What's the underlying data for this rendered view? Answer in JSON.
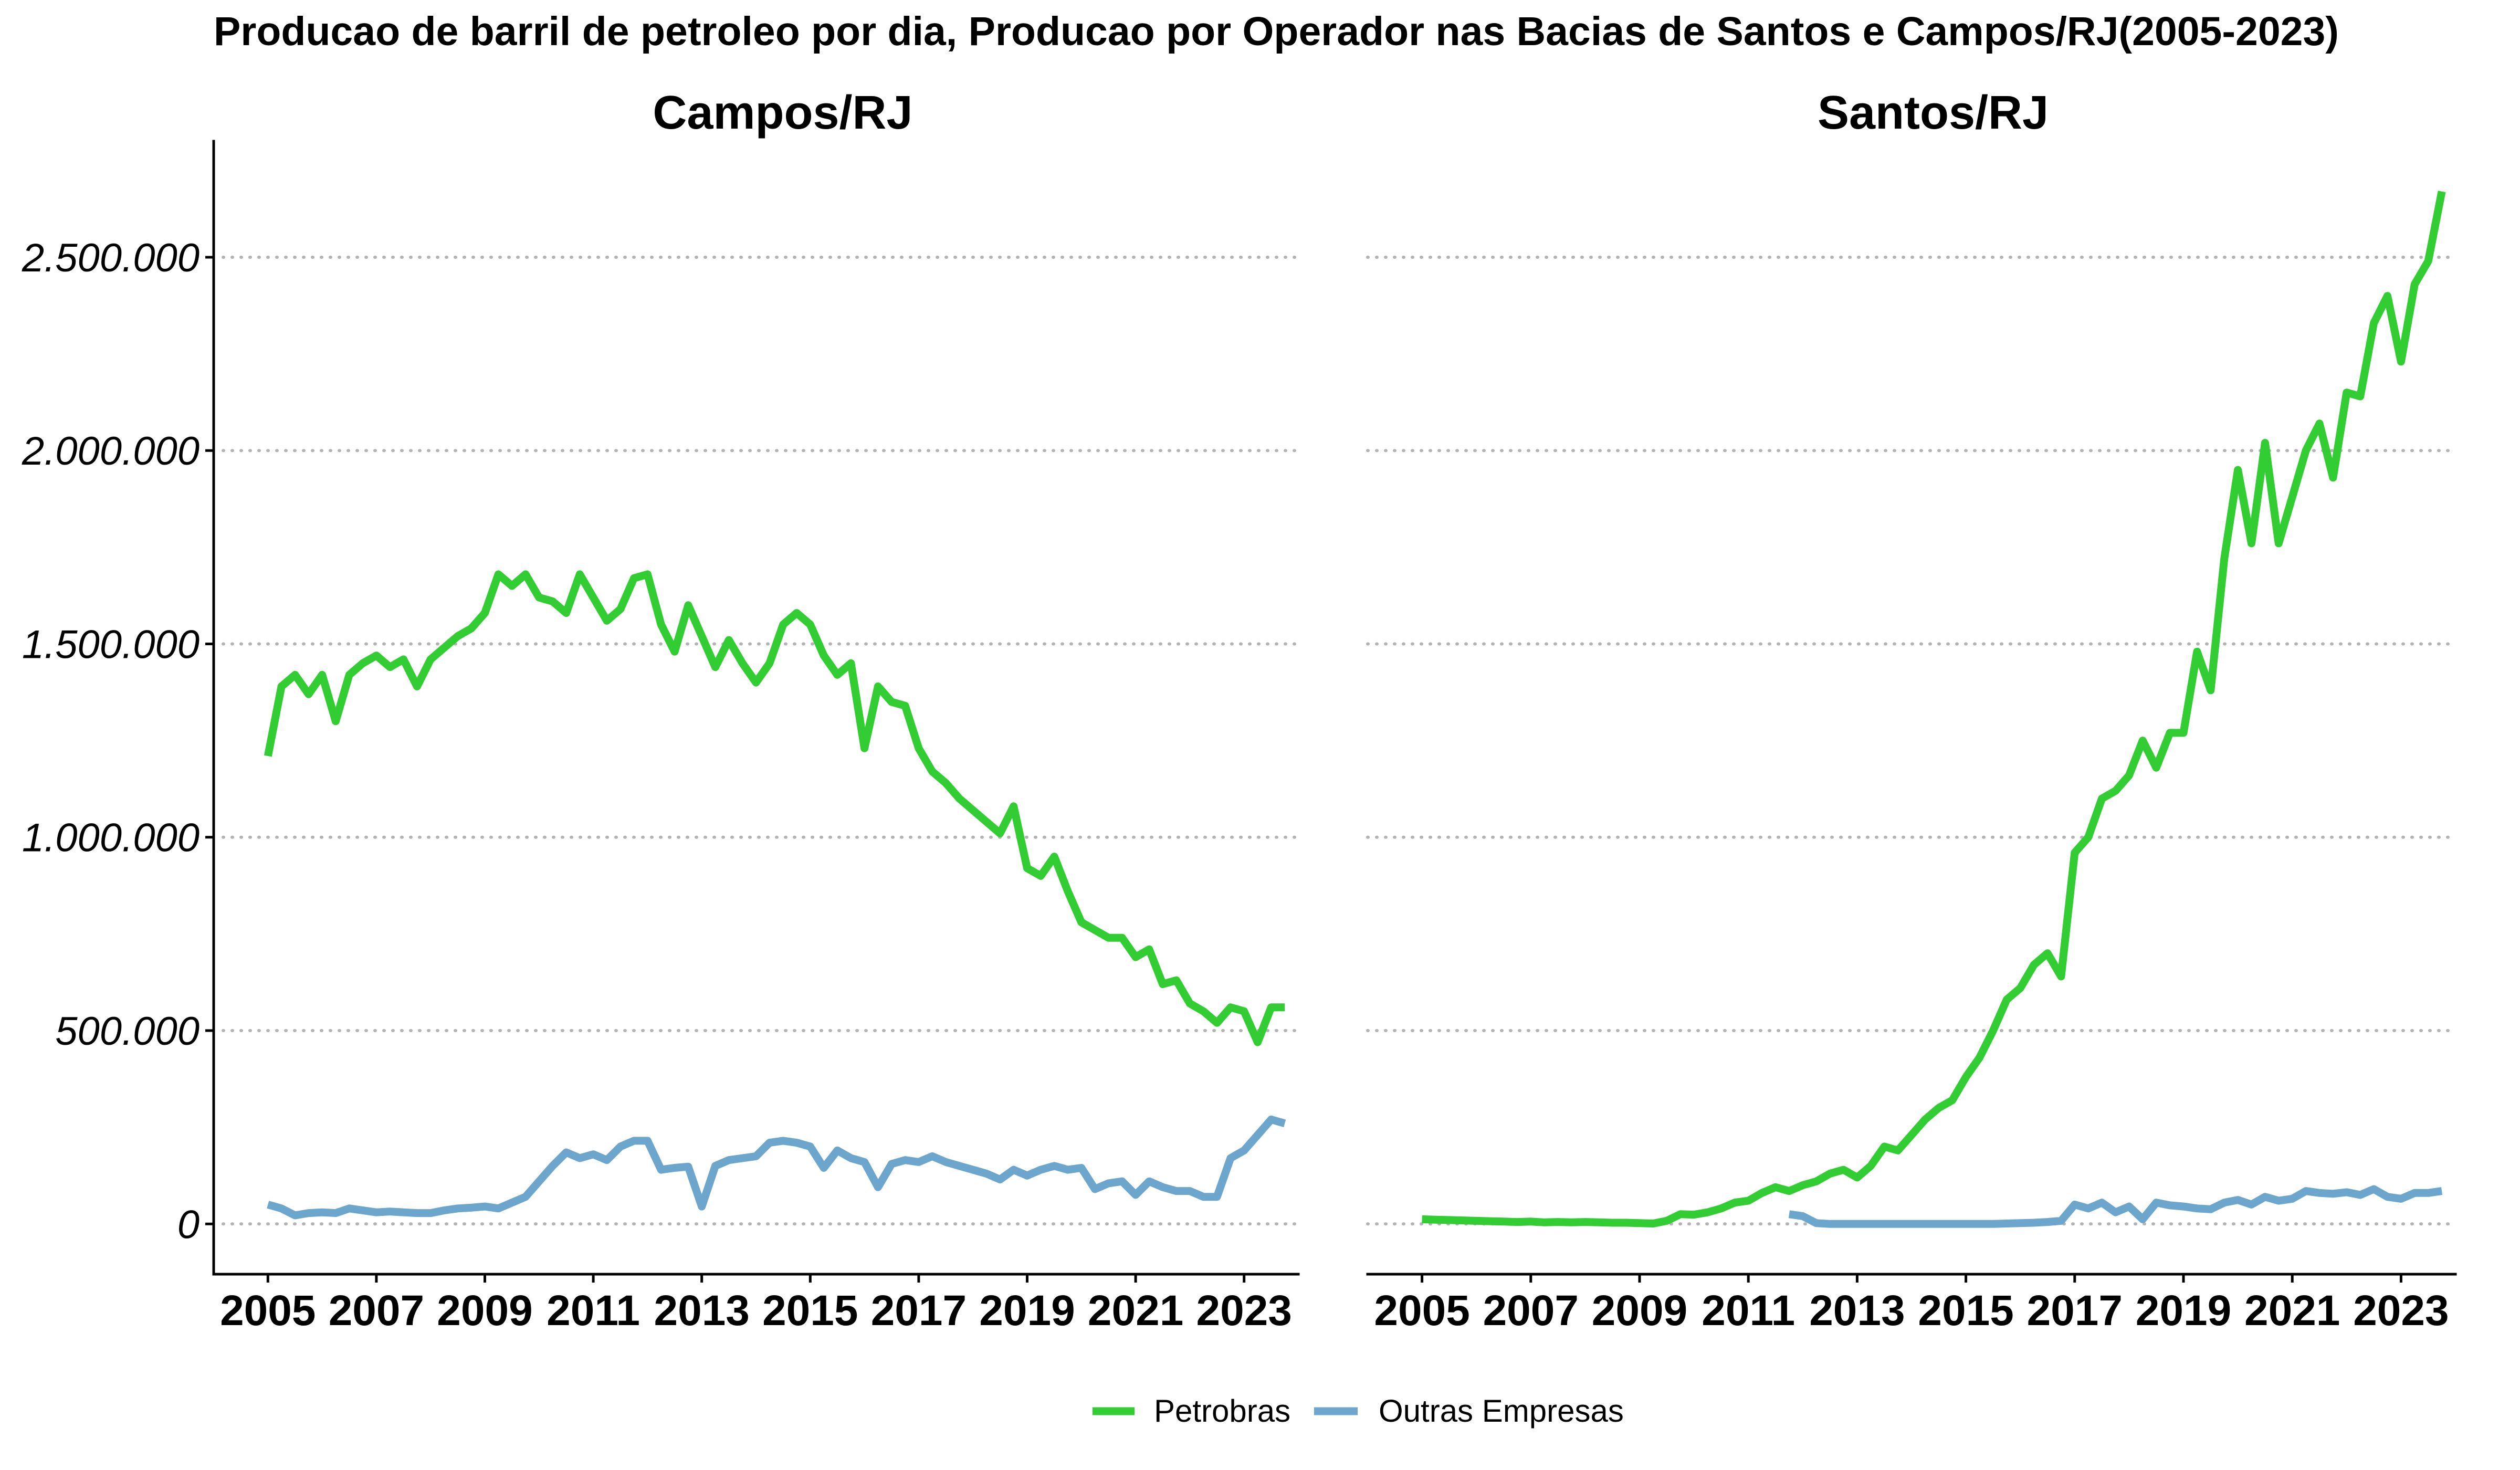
{
  "title": "Producao de barril de petroleo por dia, Producao por Operador nas Bacias de Santos e Campos/RJ(2005-2023)",
  "legend": {
    "position": "bottom",
    "items": [
      {
        "label": "Petrobras",
        "color": "#32CD32"
      },
      {
        "label": "Outras Empresas",
        "color": "#6CA6CD"
      }
    ]
  },
  "chart_data": [
    {
      "type": "line",
      "title": "Campos/RJ",
      "grid": "horizontal dotted",
      "xlim": [
        "2004-01",
        "2024-01"
      ],
      "ylim": [
        -130000,
        2800000
      ],
      "x_ticks": [
        "2005",
        "2007",
        "2009",
        "2011",
        "2013",
        "2015",
        "2017",
        "2019",
        "2021",
        "2023"
      ],
      "y_ticks": [
        0,
        500000,
        1000000,
        1500000,
        2000000,
        2500000
      ],
      "y_tick_labels": [
        "0",
        "500.000",
        "1.000.000",
        "1.500.000",
        "2.000.000",
        "2.500.000"
      ],
      "x": [
        "2005-01",
        "2005-04",
        "2005-07",
        "2005-10",
        "2006-01",
        "2006-04",
        "2006-07",
        "2006-10",
        "2007-01",
        "2007-04",
        "2007-07",
        "2007-10",
        "2008-01",
        "2008-04",
        "2008-07",
        "2008-10",
        "2009-01",
        "2009-04",
        "2009-07",
        "2009-10",
        "2010-01",
        "2010-04",
        "2010-07",
        "2010-10",
        "2011-01",
        "2011-04",
        "2011-07",
        "2011-10",
        "2012-01",
        "2012-04",
        "2012-07",
        "2012-10",
        "2013-01",
        "2013-04",
        "2013-07",
        "2013-10",
        "2014-01",
        "2014-04",
        "2014-07",
        "2014-10",
        "2015-01",
        "2015-04",
        "2015-07",
        "2015-10",
        "2016-01",
        "2016-04",
        "2016-07",
        "2016-10",
        "2017-01",
        "2017-04",
        "2017-07",
        "2017-10",
        "2018-01",
        "2018-04",
        "2018-07",
        "2018-10",
        "2019-01",
        "2019-04",
        "2019-07",
        "2019-10",
        "2020-01",
        "2020-04",
        "2020-07",
        "2020-10",
        "2021-01",
        "2021-04",
        "2021-07",
        "2021-10",
        "2022-01",
        "2022-04",
        "2022-07",
        "2022-10",
        "2023-01",
        "2023-04",
        "2023-07",
        "2023-10"
      ],
      "series": [
        {
          "name": "Petrobras",
          "color": "#32CD32",
          "y": [
            1210000,
            1390000,
            1420000,
            1370000,
            1420000,
            1300000,
            1420000,
            1450000,
            1470000,
            1440000,
            1460000,
            1390000,
            1460000,
            1490000,
            1520000,
            1540000,
            1580000,
            1680000,
            1650000,
            1680000,
            1620000,
            1610000,
            1580000,
            1680000,
            1620000,
            1560000,
            1590000,
            1670000,
            1680000,
            1550000,
            1480000,
            1600000,
            1520000,
            1440000,
            1510000,
            1450000,
            1400000,
            1450000,
            1550000,
            1580000,
            1550000,
            1470000,
            1420000,
            1450000,
            1230000,
            1390000,
            1350000,
            1340000,
            1230000,
            1170000,
            1140000,
            1100000,
            1070000,
            1040000,
            1010000,
            1080000,
            920000,
            900000,
            950000,
            860000,
            780000,
            760000,
            740000,
            740000,
            690000,
            710000,
            620000,
            630000,
            570000,
            550000,
            520000,
            560000,
            550000,
            470000,
            560000,
            560000
          ]
        },
        {
          "name": "Outras Empresas",
          "color": "#6CA6CD",
          "y": [
            50000,
            40000,
            22000,
            28000,
            30000,
            28000,
            40000,
            35000,
            30000,
            32000,
            30000,
            28000,
            28000,
            35000,
            40000,
            42000,
            45000,
            40000,
            55000,
            70000,
            110000,
            150000,
            185000,
            170000,
            180000,
            165000,
            200000,
            215000,
            215000,
            140000,
            145000,
            148000,
            45000,
            150000,
            165000,
            170000,
            175000,
            210000,
            215000,
            210000,
            200000,
            145000,
            190000,
            170000,
            160000,
            95000,
            155000,
            165000,
            160000,
            175000,
            160000,
            150000,
            140000,
            130000,
            115000,
            140000,
            125000,
            140000,
            150000,
            140000,
            145000,
            90000,
            105000,
            110000,
            75000,
            110000,
            95000,
            85000,
            85000,
            70000,
            70000,
            170000,
            190000,
            230000,
            270000,
            260000
          ]
        }
      ]
    },
    {
      "type": "line",
      "title": "Santos/RJ",
      "grid": "horizontal dotted",
      "xlim": [
        "2004-01",
        "2024-01"
      ],
      "ylim": [
        -130000,
        2800000
      ],
      "x_ticks": [
        "2005",
        "2007",
        "2009",
        "2011",
        "2013",
        "2015",
        "2017",
        "2019",
        "2021",
        "2023"
      ],
      "y_ticks": [
        0,
        500000,
        1000000,
        1500000,
        2000000,
        2500000
      ],
      "x": [
        "2005-01",
        "2005-04",
        "2005-07",
        "2005-10",
        "2006-01",
        "2006-04",
        "2006-07",
        "2006-10",
        "2007-01",
        "2007-04",
        "2007-07",
        "2007-10",
        "2008-01",
        "2008-04",
        "2008-07",
        "2008-10",
        "2009-01",
        "2009-04",
        "2009-07",
        "2009-10",
        "2010-01",
        "2010-04",
        "2010-07",
        "2010-10",
        "2011-01",
        "2011-04",
        "2011-07",
        "2011-10",
        "2012-01",
        "2012-04",
        "2012-07",
        "2012-10",
        "2013-01",
        "2013-04",
        "2013-07",
        "2013-10",
        "2014-01",
        "2014-04",
        "2014-07",
        "2014-10",
        "2015-01",
        "2015-04",
        "2015-07",
        "2015-10",
        "2016-01",
        "2016-04",
        "2016-07",
        "2016-10",
        "2017-01",
        "2017-04",
        "2017-07",
        "2017-10",
        "2018-01",
        "2018-04",
        "2018-07",
        "2018-10",
        "2019-01",
        "2019-04",
        "2019-07",
        "2019-10",
        "2020-01",
        "2020-04",
        "2020-07",
        "2020-10",
        "2021-01",
        "2021-04",
        "2021-07",
        "2021-10",
        "2022-01",
        "2022-04",
        "2022-07",
        "2022-10",
        "2023-01",
        "2023-04",
        "2023-07",
        "2023-10"
      ],
      "series": [
        {
          "name": "Petrobras",
          "color": "#32CD32",
          "y": [
            12000,
            11000,
            10000,
            9000,
            8000,
            7000,
            6000,
            5000,
            6000,
            4000,
            5000,
            4000,
            5000,
            4000,
            3000,
            3000,
            2000,
            1000,
            8000,
            25000,
            24000,
            30000,
            40000,
            55000,
            60000,
            80000,
            95000,
            85000,
            100000,
            110000,
            130000,
            140000,
            120000,
            150000,
            200000,
            190000,
            230000,
            270000,
            300000,
            320000,
            380000,
            430000,
            500000,
            580000,
            610000,
            670000,
            700000,
            640000,
            960000,
            1000000,
            1100000,
            1120000,
            1160000,
            1250000,
            1180000,
            1270000,
            1270000,
            1480000,
            1380000,
            1720000,
            1950000,
            1760000,
            2020000,
            1760000,
            1880000,
            2000000,
            2070000,
            1930000,
            2150000,
            2140000,
            2330000,
            2400000,
            2230000,
            2430000,
            2490000,
            2670000
          ]
        },
        {
          "name": "Outras Empresas",
          "color": "#6CA6CD",
          "y": [
            null,
            null,
            null,
            null,
            null,
            null,
            null,
            null,
            null,
            null,
            null,
            null,
            null,
            null,
            null,
            null,
            null,
            null,
            null,
            null,
            null,
            null,
            null,
            null,
            null,
            null,
            null,
            25000,
            20000,
            2000,
            0,
            0,
            0,
            0,
            0,
            0,
            0,
            0,
            0,
            0,
            0,
            0,
            0,
            1000,
            2000,
            3000,
            5000,
            8000,
            50000,
            40000,
            55000,
            30000,
            45000,
            12000,
            55000,
            48000,
            45000,
            40000,
            38000,
            55000,
            62000,
            50000,
            70000,
            60000,
            65000,
            85000,
            80000,
            78000,
            82000,
            75000,
            90000,
            70000,
            65000,
            80000,
            80000,
            85000
          ]
        }
      ]
    }
  ]
}
